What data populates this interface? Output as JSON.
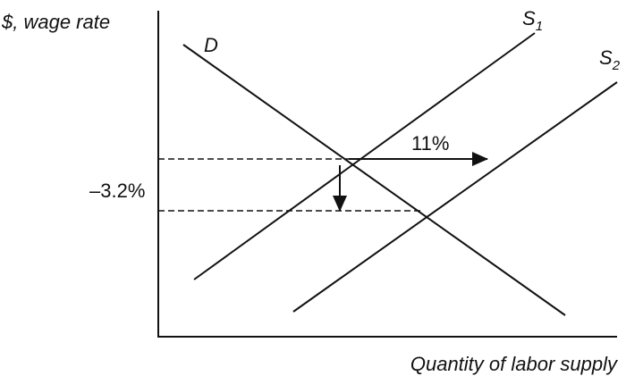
{
  "axes": {
    "y_label": "$, wage rate",
    "x_label": "Quantity of labor supply"
  },
  "curves": [
    {
      "label": "D"
    },
    {
      "label": "S",
      "subscript": "1"
    },
    {
      "label": "S",
      "subscript": "2"
    }
  ],
  "annotations": [
    {
      "text": "11%"
    },
    {
      "text": "–3.2%"
    }
  ]
}
